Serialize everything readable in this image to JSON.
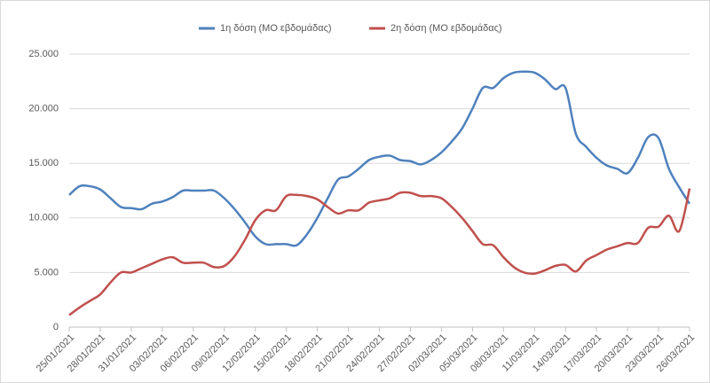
{
  "chart_data": {
    "type": "line",
    "categories": [
      "25/01/2021",
      null,
      null,
      "28/01/2021",
      null,
      null,
      "31/01/2021",
      null,
      null,
      "03/02/2021",
      null,
      null,
      "06/02/2021",
      null,
      null,
      "09/02/2021",
      null,
      null,
      "12/02/2021",
      null,
      null,
      "15/02/2021",
      null,
      null,
      "18/02/2021",
      null,
      null,
      "21/02/2021",
      null,
      null,
      "24/02/2021",
      null,
      null,
      "27/02/2021",
      null,
      null,
      "02/03/2021",
      null,
      null,
      "05/03/2021",
      null,
      null,
      "08/03/2021",
      null,
      null,
      "11/03/2021",
      null,
      null,
      "14/03/2021",
      null,
      null,
      "17/03/2021",
      null,
      null,
      "20/03/2021",
      null,
      null,
      "23/03/2021",
      null,
      null,
      "26/03/2021"
    ],
    "series": [
      {
        "name": "1η δόση (ΜΟ εβδομάδας)",
        "color": "#4f81bd",
        "values": [
          12100,
          12900,
          12900,
          12600,
          11800,
          11000,
          10900,
          10800,
          11300,
          11500,
          11900,
          12500,
          12500,
          12500,
          12500,
          11800,
          10800,
          9600,
          8300,
          7600,
          7600,
          7600,
          7500,
          8500,
          10000,
          11800,
          13500,
          13800,
          14500,
          15300,
          15600,
          15700,
          15300,
          15200,
          14900,
          15300,
          16000,
          17000,
          18200,
          20000,
          21900,
          21900,
          22800,
          23300,
          23400,
          23300,
          22700,
          21800,
          21900,
          17700,
          16500,
          15500,
          14800,
          14500,
          14100,
          15500,
          17400,
          17300,
          14500,
          12800,
          11300
        ]
      },
      {
        "name": "2η δόση (ΜΟ εβδομάδας)",
        "color": "#c0504d",
        "values": [
          1100,
          1800,
          2400,
          3000,
          4100,
          5000,
          5000,
          5400,
          5800,
          6200,
          6400,
          5900,
          5900,
          5900,
          5500,
          5600,
          6500,
          8000,
          9800,
          10700,
          10700,
          12000,
          12100,
          12000,
          11700,
          11000,
          10400,
          10700,
          10700,
          11400,
          11600,
          11800,
          12300,
          12300,
          12000,
          12000,
          11800,
          11000,
          10000,
          8800,
          7600,
          7500,
          6400,
          5500,
          5000,
          4900,
          5200,
          5600,
          5700,
          5100,
          6100,
          6600,
          7100,
          7400,
          7700,
          7700,
          9100,
          9200,
          10200,
          8800,
          12700
        ]
      }
    ],
    "ylim": [
      0,
      25000
    ],
    "yticks": [
      0,
      {
        "value": 5000,
        "label": "5.000"
      },
      {
        "value": 10000,
        "label": "10.000"
      },
      {
        "value": 15000,
        "label": "15.000"
      },
      {
        "value": 20000,
        "label": "20.000"
      },
      {
        "value": 25000,
        "label": "25.000"
      }
    ],
    "grid": true,
    "legend": "top"
  }
}
